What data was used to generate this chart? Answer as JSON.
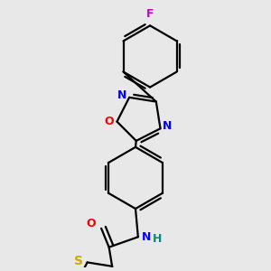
{
  "bg_color": "#e8e8e8",
  "bond_color": "#000000",
  "atom_colors": {
    "N": "#0000ff",
    "O": "#ff0000",
    "S": "#ccaa00",
    "F": "#cc00cc",
    "H": "#008888",
    "C": "#000000"
  },
  "font_size": 9,
  "linewidth": 1.6
}
